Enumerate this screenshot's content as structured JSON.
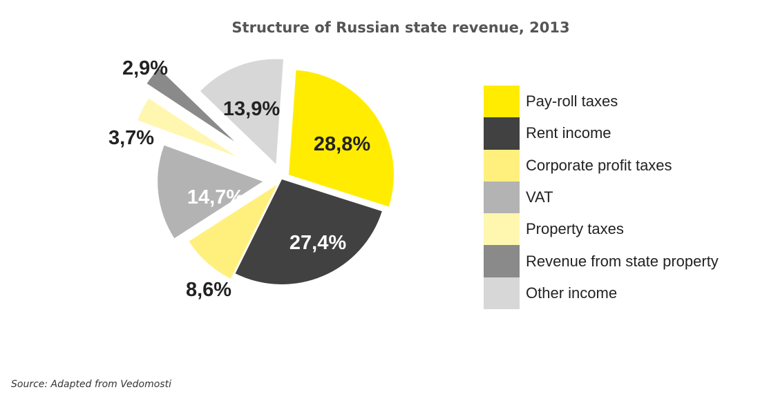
{
  "chart_data": {
    "type": "pie",
    "title": "Structure of Russian state revenue, 2013",
    "slices": [
      {
        "name": "Pay-roll taxes",
        "value": 28.8,
        "label": "28,8%",
        "color": "#ffec00",
        "label_color": "#222222",
        "exploded": true
      },
      {
        "name": "Rent income",
        "value": 27.4,
        "label": "27,4%",
        "color": "#414141",
        "label_color": "#ffffff",
        "exploded": false
      },
      {
        "name": "Corporate profit taxes",
        "value": 8.6,
        "label": "8,6%",
        "color": "#fff07e",
        "label_color": "#222222",
        "exploded": true
      },
      {
        "name": "VAT",
        "value": 14.7,
        "label": "14,7%",
        "color": "#b3b3b3",
        "label_color": "#ffffff",
        "exploded": true
      },
      {
        "name": "Property taxes",
        "value": 3.7,
        "label": "3,7%",
        "color": "#fff6b0",
        "label_color": "#222222",
        "exploded": true
      },
      {
        "name": "Revenue from state property",
        "value": 2.9,
        "label": "2,9%",
        "color": "#8a8a8a",
        "label_color": "#222222",
        "exploded": true
      },
      {
        "name": "Other income",
        "value": 13.9,
        "label": "13,9%",
        "color": "#d7d7d7",
        "label_color": "#222222",
        "exploded": true
      }
    ],
    "legend_position": "right"
  },
  "source": "Source: Adapted from Vedomosti"
}
